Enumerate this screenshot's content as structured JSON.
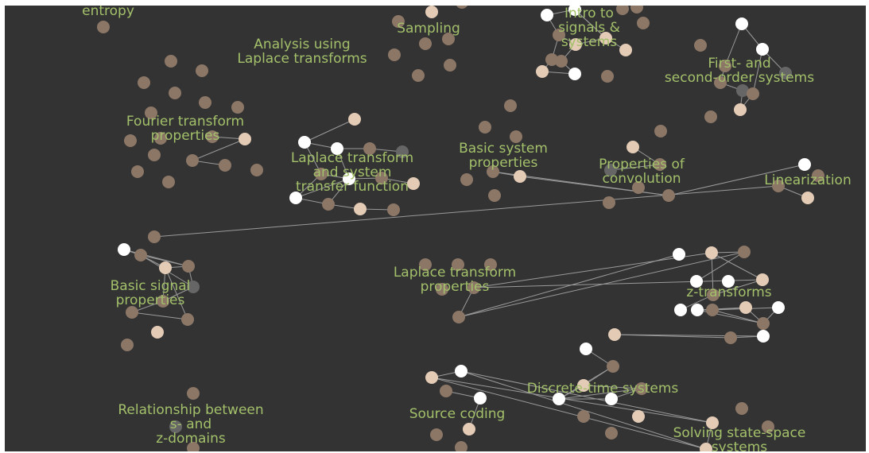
{
  "colors": {
    "background": "#333333",
    "label": "#a3c06a",
    "node_light": "#ffffff",
    "node_pale": "#e3cbb6",
    "node_tan": "#c4ab96",
    "node_brown": "#8c7767",
    "node_grey": "#666666",
    "edge": "#9a9a9a"
  },
  "clusters": [
    {
      "name": "entropy",
      "label": "entropy"
    },
    {
      "name": "sampling",
      "label": "Sampling"
    },
    {
      "name": "intro-to-signals-systems",
      "label": "Intro to\nsignals &\nsystems"
    },
    {
      "name": "analysis-laplace",
      "label": "Analysis using\nLaplace transforms"
    },
    {
      "name": "first-second-order",
      "label": "First- and\nsecond-order systems"
    },
    {
      "name": "fourier-transform-properties",
      "label": "Fourier transform\nproperties"
    },
    {
      "name": "laplace-transfer-function",
      "label": "Laplace transform\nand system\ntransfer function"
    },
    {
      "name": "basic-system-properties",
      "label": "Basic system\nproperties"
    },
    {
      "name": "properties-of-convolution",
      "label": "Properties of\nconvolution"
    },
    {
      "name": "linearization",
      "label": "Linearization"
    },
    {
      "name": "laplace-transform-properties",
      "label": "Laplace transform\nproperties"
    },
    {
      "name": "basic-signal-properties",
      "label": "Basic signal\nproperties"
    },
    {
      "name": "z-transforms",
      "label": "z-transforms"
    },
    {
      "name": "discrete-time-systems",
      "label": "Discrete-time systems"
    },
    {
      "name": "source-coding",
      "label": "Source coding"
    },
    {
      "name": "relationship-s-z",
      "label": "Relationship between\ns- and\nz-domains"
    },
    {
      "name": "solving-state-space",
      "label": "Solving state-space\nsystems"
    }
  ]
}
